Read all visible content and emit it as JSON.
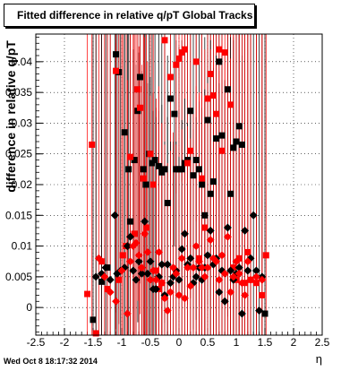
{
  "chart_data": {
    "type": "scatter",
    "title": "Fitted difference in relative q/pT  Global Tracks",
    "xlabel": "η",
    "ylabel": "difference in relative q/pT",
    "xlim": [
      -2.5,
      2.5
    ],
    "ylim": [
      -0.0045,
      0.0445
    ],
    "x_ticks": [
      "-2.5",
      "-2",
      "-1.5",
      "-1",
      "-0.5",
      "0",
      "0.5",
      "1",
      "1.5",
      "2",
      "2.5"
    ],
    "y_ticks": [
      "0",
      "0.005",
      "0.01",
      "0.015",
      "0.02",
      "0.025",
      "0.03",
      "0.035",
      "0.04"
    ],
    "grid": true,
    "series": [
      {
        "color": "#000000",
        "marker": "square",
        "points": [
          [
            -1.5,
            -0.002
          ],
          [
            -1.35,
            0.0042
          ],
          [
            -1.25,
            0.0065
          ],
          [
            -1.1,
            0.0412
          ],
          [
            -1.05,
            0.0383
          ],
          [
            -0.95,
            0.0285
          ],
          [
            -0.88,
            0.0225
          ],
          [
            -0.85,
            0.014
          ],
          [
            -0.78,
            0.024
          ],
          [
            -0.72,
            0.032
          ],
          [
            -0.68,
            0.0375
          ],
          [
            -0.62,
            0.0225
          ],
          [
            -0.58,
            0.02
          ],
          [
            -0.52,
            0.025
          ],
          [
            -0.47,
            0.0235
          ],
          [
            -0.42,
            0.024
          ],
          [
            -0.35,
            0.023
          ],
          [
            -0.3,
            0.022
          ],
          [
            -0.25,
            0.0225
          ],
          [
            -0.2,
            0.017
          ],
          [
            -0.15,
            0.034
          ],
          [
            -0.08,
            0.0315
          ],
          [
            -0.05,
            0.0225
          ],
          [
            0.0,
            0.0225
          ],
          [
            0.05,
            0.0225
          ],
          [
            0.1,
            0.0235
          ],
          [
            0.15,
            0.024
          ],
          [
            0.2,
            0.032
          ],
          [
            0.25,
            0.0215
          ],
          [
            0.3,
            0.024
          ],
          [
            0.35,
            0.0225
          ],
          [
            0.4,
            0.02
          ],
          [
            0.45,
            0.015
          ],
          [
            0.5,
            0.0305
          ],
          [
            0.55,
            0.0185
          ],
          [
            0.6,
            0.0205
          ],
          [
            0.65,
            0.0275
          ],
          [
            0.7,
            0.04
          ],
          [
            0.75,
            0.028
          ],
          [
            0.85,
            0.0355
          ],
          [
            0.9,
            0.0185
          ],
          [
            0.95,
            0.026
          ],
          [
            1.0,
            0.027
          ],
          [
            1.05,
            0.0295
          ],
          [
            1.1,
            0.0265
          ],
          [
            1.5,
            -0.001
          ]
        ]
      },
      {
        "color": "#ff0000",
        "marker": "square",
        "points": [
          [
            -1.6,
            0.0022
          ],
          [
            -1.52,
            0.0265
          ],
          [
            -1.45,
            -0.0042
          ],
          [
            -1.35,
            0.0075
          ],
          [
            -1.25,
            0.003
          ],
          [
            -1.1,
            0.0385
          ],
          [
            -1.05,
            0.0045
          ],
          [
            -0.98,
            0.0085
          ],
          [
            -0.92,
            0.01
          ],
          [
            -0.85,
            0.0245
          ],
          [
            -0.78,
            0.012
          ],
          [
            -0.72,
            0.0355
          ],
          [
            -0.68,
            0.0325
          ],
          [
            -0.62,
            0.021
          ],
          [
            -0.57,
            0.013
          ],
          [
            -0.5,
            0.025
          ],
          [
            -0.45,
            0.02
          ],
          [
            -0.4,
            0.006
          ],
          [
            -0.35,
            0.003
          ],
          [
            -0.3,
            0.004
          ],
          [
            -0.25,
            0.0435
          ],
          [
            -0.15,
            0.0375
          ],
          [
            -0.05,
            0.0395
          ],
          [
            0.0,
            0.0405
          ],
          [
            0.05,
            0.0415
          ],
          [
            0.1,
            0.042
          ],
          [
            0.15,
            0.0235
          ],
          [
            0.2,
            0.0255
          ],
          [
            0.3,
            0.04
          ],
          [
            0.35,
            0.008
          ],
          [
            0.4,
            0.021
          ],
          [
            0.45,
            0.013
          ],
          [
            0.5,
            0.034
          ],
          [
            0.55,
            0.038
          ],
          [
            0.6,
            0.0345
          ],
          [
            0.65,
            0.0315
          ],
          [
            0.7,
            0.042
          ],
          [
            0.75,
            0.0255
          ],
          [
            0.8,
            0.0415
          ],
          [
            0.9,
            0.033
          ],
          [
            0.95,
            0.0065
          ],
          [
            1.0,
            0.0045
          ],
          [
            1.05,
            0.008
          ],
          [
            1.15,
            0.004
          ],
          [
            1.2,
            0.009
          ],
          [
            1.25,
            0.0045
          ],
          [
            1.35,
            0.004
          ],
          [
            1.45,
            0.002
          ],
          [
            1.52,
            0.0085
          ]
        ]
      },
      {
        "color": "#000000",
        "marker": "diamond",
        "points": [
          [
            -1.45,
            0.005
          ],
          [
            -1.35,
            0.0055
          ],
          [
            -1.28,
            0.0065
          ],
          [
            -1.2,
            0.0045
          ],
          [
            -1.12,
            0.015
          ],
          [
            -1.08,
            0.0055
          ],
          [
            -1.02,
            0.006
          ],
          [
            -0.95,
            0.0065
          ],
          [
            -0.9,
            0.01
          ],
          [
            -0.85,
            0.0115
          ],
          [
            -0.8,
            0.006
          ],
          [
            -0.75,
            0.0045
          ],
          [
            -0.7,
            0.0075
          ],
          [
            -0.65,
            0.0055
          ],
          [
            -0.6,
            0.014
          ],
          [
            -0.55,
            0.0055
          ],
          [
            -0.5,
            0.0075
          ],
          [
            -0.45,
            0.003
          ],
          [
            -0.4,
            0.003
          ],
          [
            -0.35,
            0.005
          ],
          [
            -0.3,
            0.007
          ],
          [
            -0.25,
            0.002
          ],
          [
            -0.2,
            0.007
          ],
          [
            -0.15,
            0.004
          ],
          [
            -0.1,
            0.005
          ],
          [
            -0.05,
            0.006
          ],
          [
            0.0,
            0.0045
          ],
          [
            0.05,
            0.0095
          ],
          [
            0.1,
            0.012
          ],
          [
            0.15,
            0.007
          ],
          [
            0.2,
            0.008
          ],
          [
            0.25,
            0.004
          ],
          [
            0.3,
            0.005
          ],
          [
            0.35,
            0.0065
          ],
          [
            0.4,
            0.0045
          ],
          [
            0.45,
            0.0065
          ],
          [
            0.5,
            0.0085
          ],
          [
            0.55,
            0.0125
          ],
          [
            0.6,
            0.007
          ],
          [
            0.65,
            0.008
          ],
          [
            0.7,
            0.0025
          ],
          [
            0.75,
            0.006
          ],
          [
            0.8,
            0.001
          ],
          [
            0.85,
            0.013
          ],
          [
            0.9,
            0.006
          ],
          [
            0.95,
            0.0045
          ],
          [
            1.0,
            0.0055
          ],
          [
            1.05,
            0.0065
          ],
          [
            1.1,
            -0.001
          ],
          [
            1.15,
            0.0125
          ],
          [
            1.2,
            0.006
          ],
          [
            1.25,
            0.008
          ],
          [
            1.3,
            0.015
          ],
          [
            1.35,
            0.006
          ],
          [
            1.4,
            -0.0005
          ],
          [
            1.45,
            0.005
          ]
        ]
      },
      {
        "color": "#ff0000",
        "marker": "diamond",
        "points": [
          [
            -1.4,
            0.008
          ],
          [
            -1.3,
            0.005
          ],
          [
            -1.2,
            0.0025
          ],
          [
            -1.1,
            0.001
          ],
          [
            -1.0,
            0.006
          ],
          [
            -0.9,
            -0.001
          ],
          [
            -0.85,
            0.0075
          ],
          [
            -0.8,
            0.01
          ],
          [
            -0.75,
            0.0105
          ],
          [
            -0.7,
            0.0085
          ],
          [
            -0.65,
            0.0065
          ],
          [
            -0.6,
            0.012
          ],
          [
            -0.55,
            0.009
          ],
          [
            -0.5,
            0.0045
          ],
          [
            -0.45,
            0.006
          ],
          [
            -0.4,
            0.0045
          ],
          [
            -0.35,
            0.009
          ],
          [
            -0.3,
            0.004
          ],
          [
            -0.25,
            0.0015
          ],
          [
            -0.2,
            -0.0005
          ],
          [
            -0.15,
            0.0025
          ],
          [
            -0.1,
            0.0065
          ],
          [
            -0.05,
            0.0055
          ],
          [
            0.0,
            0.002
          ],
          [
            0.05,
            0.008
          ],
          [
            0.1,
            0.0015
          ],
          [
            0.15,
            0.0065
          ],
          [
            0.2,
            0.0035
          ],
          [
            0.25,
            0.0065
          ],
          [
            0.3,
            0.01
          ],
          [
            0.35,
            0.0075
          ],
          [
            0.4,
            0.0065
          ],
          [
            0.45,
            0.005
          ],
          [
            0.5,
            0.0065
          ],
          [
            0.55,
            0.011
          ],
          [
            0.6,
            0.008
          ],
          [
            0.65,
            0.0075
          ],
          [
            0.7,
            0.0045
          ],
          [
            0.75,
            0.0085
          ],
          [
            0.8,
            0.0055
          ],
          [
            0.85,
            0.0115
          ],
          [
            0.9,
            0.0025
          ],
          [
            0.95,
            0.005
          ],
          [
            1.0,
            0.0075
          ],
          [
            1.05,
            0.0055
          ],
          [
            1.1,
            0.004
          ],
          [
            1.15,
            0.002
          ],
          [
            1.2,
            0.0075
          ],
          [
            1.25,
            0.0045
          ],
          [
            1.35,
            0.005
          ],
          [
            1.45,
            0.0045
          ]
        ]
      }
    ]
  },
  "footer": {
    "timestamp": "Wed Oct  8 18:17:32 2014"
  }
}
